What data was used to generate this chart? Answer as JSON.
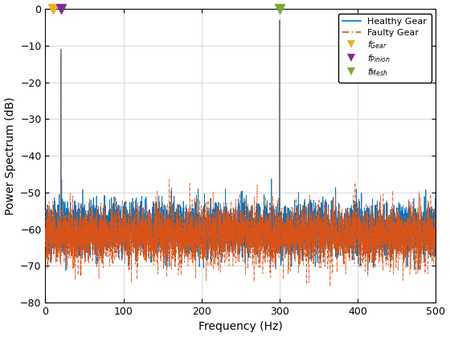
{
  "xlim": [
    0,
    500
  ],
  "ylim": [
    -80,
    0
  ],
  "xlabel": "Frequency (Hz)",
  "ylabel": "Power Spectrum (dB)",
  "yticks": [
    0,
    -10,
    -20,
    -30,
    -40,
    -50,
    -60,
    -70,
    -80
  ],
  "xticks": [
    0,
    100,
    200,
    300,
    400,
    500
  ],
  "healthy_color": "#0072BD",
  "faulty_color": "#D95319",
  "f_gear_hz": 10,
  "f_pinion_hz": 20,
  "f_mesh_hz": 300,
  "f_gear_color": "#EDB120",
  "f_pinion_color": "#7E2F8E",
  "f_mesh_color": "#77AC30",
  "noise_mean": -60,
  "noise_std": 3.5,
  "spike1_freq": 20,
  "spike1_db": -11,
  "spike2_freq": 300,
  "spike2_db": -3,
  "n_points": 5000,
  "seed": 42,
  "figsize": [
    5.6,
    4.2
  ],
  "dpi": 100
}
